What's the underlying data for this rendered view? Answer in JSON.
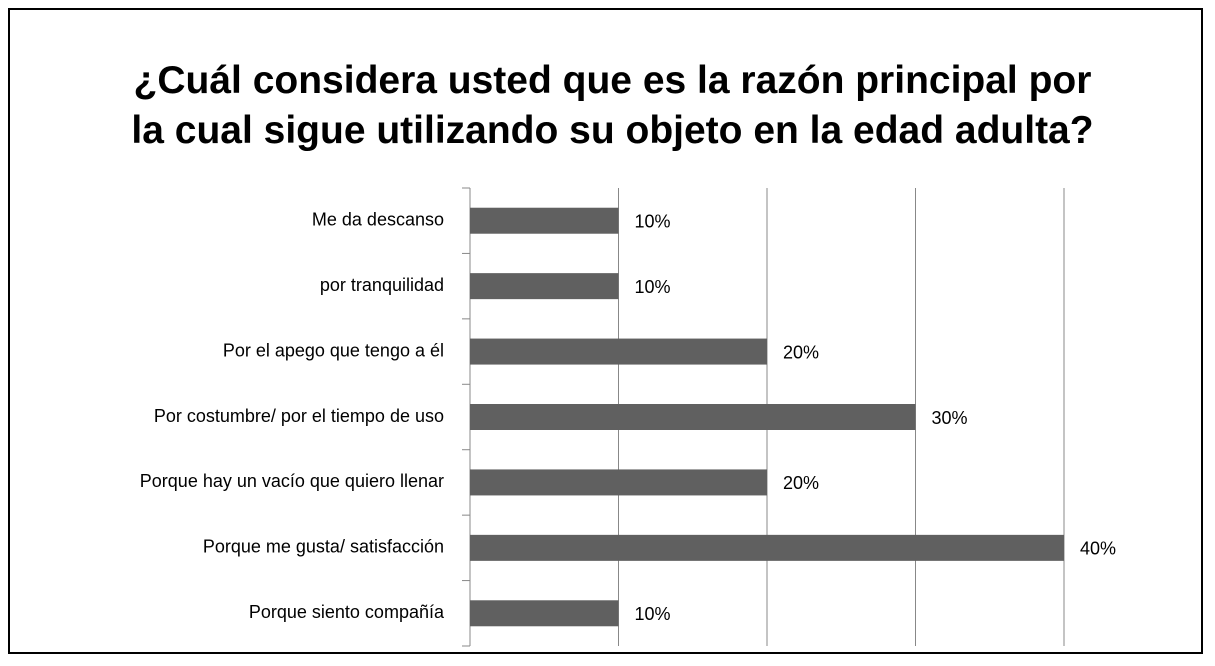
{
  "chart_data": {
    "type": "bar",
    "orientation": "horizontal",
    "title": "¿Cuál considera usted que es la razón principal por la cual sigue utilizando su objeto en la edad adulta?",
    "categories": [
      "Me da descanso",
      "por tranquilidad",
      "Por el apego que tengo a él",
      "Por costumbre/ por el tiempo de uso",
      "Porque hay un vacío que quiero llenar",
      "Porque me gusta/ satisfacción",
      "Porque siento compañía"
    ],
    "values": [
      10,
      10,
      20,
      30,
      20,
      40,
      10
    ],
    "value_labels": [
      "10%",
      "10%",
      "20%",
      "30%",
      "20%",
      "40%",
      "10%"
    ],
    "color": "#606060",
    "xlim": [
      0,
      40
    ],
    "xticks": [
      0,
      10,
      20,
      30,
      40
    ],
    "grid": true
  }
}
